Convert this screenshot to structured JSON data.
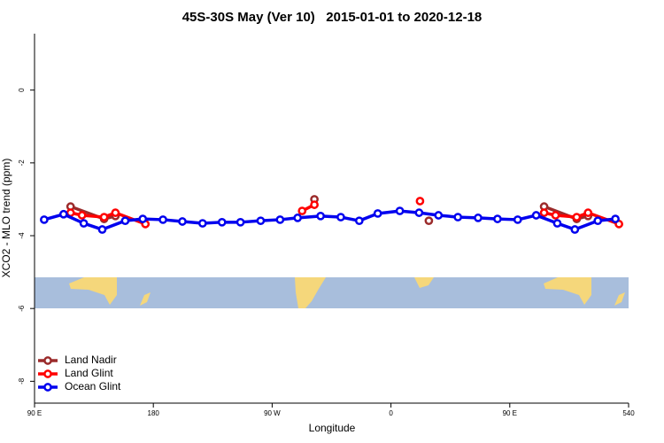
{
  "chart_data": {
    "type": "line",
    "title": "45S-30S May (Ver 10)   2015-01-01 to 2020-12-18",
    "x_label": "Longitude",
    "y_label": "XCO2 - MLO trend (ppm)",
    "xlim": [
      90,
      540
    ],
    "ylim": [
      -8.6,
      1.55
    ],
    "xticks": [
      {
        "value": 90,
        "label": "90 E"
      },
      180,
      {
        "value": 270,
        "label": "90 W"
      },
      {
        "value": 360,
        "label": "0"
      },
      {
        "value": 450,
        "label": "90 E"
      },
      540
    ],
    "yticks": [
      -8,
      -6,
      -4,
      -2,
      0
    ],
    "legend": "bottom-left",
    "series": [
      {
        "name": "Land Nadir",
        "color": "#9b2b2b",
        "x": [
          117.3,
          142.7,
          151.3,
          null,
          302,
          null,
          388.7,
          null,
          476,
          500.7,
          509.3
        ],
        "values": [
          -3.2,
          -3.54,
          -3.46,
          null,
          -3.0,
          null,
          -3.59,
          null,
          -3.2,
          -3.54,
          -3.46
        ]
      },
      {
        "name": "Land Glint",
        "color": "#ff0000",
        "x": [
          117.3,
          126,
          142.7,
          151.3,
          174,
          null,
          292.7,
          302,
          null,
          382,
          null,
          476,
          484.7,
          500.7,
          509.3,
          532.7
        ],
        "values": [
          -3.37,
          -3.44,
          -3.49,
          -3.37,
          -3.68,
          null,
          -3.32,
          -3.15,
          null,
          -3.05,
          null,
          -3.37,
          -3.44,
          -3.49,
          -3.37,
          -3.68
        ]
      },
      {
        "name": "Ocean Glint",
        "color": "#0000ee",
        "x": [
          97.3,
          112,
          127.3,
          141.3,
          158.7,
          172,
          187.3,
          202,
          217.3,
          232,
          246,
          261.3,
          276,
          289.3,
          306.7,
          322,
          336,
          350,
          366.7,
          381.3,
          396,
          410.7,
          426,
          440.7,
          456,
          470,
          486,
          499.3,
          516.7,
          530
        ],
        "values": [
          -3.56,
          -3.41,
          -3.66,
          -3.83,
          -3.59,
          -3.54,
          -3.56,
          -3.61,
          -3.66,
          -3.63,
          -3.63,
          -3.59,
          -3.56,
          -3.51,
          -3.46,
          -3.49,
          -3.59,
          -3.39,
          -3.32,
          -3.37,
          -3.44,
          -3.49,
          -3.51,
          -3.54,
          -3.56,
          -3.44,
          -3.66,
          -3.83,
          -3.59,
          -3.54
        ]
      }
    ]
  }
}
